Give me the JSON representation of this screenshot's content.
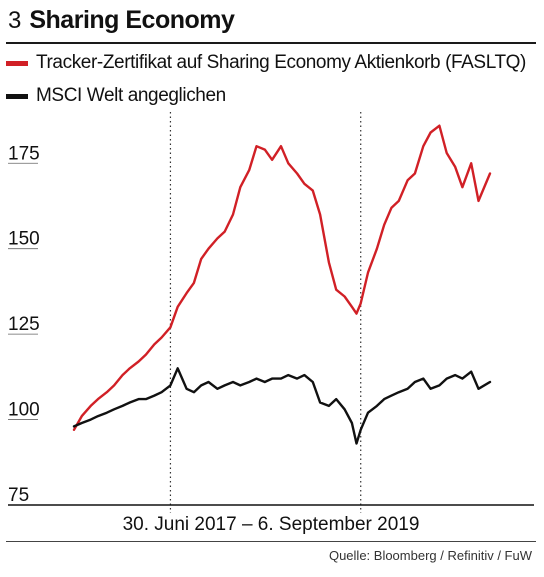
{
  "header": {
    "figure_number": "3",
    "title": "Sharing Economy"
  },
  "source": "Quelle: Bloomberg / Refinitiv / FuW",
  "colors": {
    "tracker": "#d12026",
    "msci": "#111111",
    "grid": "#333333"
  },
  "chart_data": {
    "type": "line",
    "title": "Sharing Economy",
    "xlabel": "30. Juni 2017 – 6. September 2019",
    "ylabel": "",
    "ylim": [
      75,
      190
    ],
    "yticks": [
      75,
      100,
      125,
      150,
      175
    ],
    "grid": "vertical dotted",
    "legend_position": "top",
    "x_start": "2017-06-30",
    "x_end": "2019-09-06",
    "x_gridlines": [
      "2018-01-01",
      "2019-01-01"
    ],
    "series": [
      {
        "name": "Tracker-Zertifikat auf Sharing Economy Aktienkorb (FASLTQ)",
        "color": "#d12026",
        "x": [
          "2017-06-30",
          "2017-07-15",
          "2017-08-01",
          "2017-08-15",
          "2017-09-01",
          "2017-09-15",
          "2017-10-01",
          "2017-10-15",
          "2017-11-01",
          "2017-11-15",
          "2017-12-01",
          "2017-12-15",
          "2018-01-01",
          "2018-01-15",
          "2018-02-01",
          "2018-02-15",
          "2018-03-01",
          "2018-03-15",
          "2018-04-01",
          "2018-04-15",
          "2018-05-01",
          "2018-05-15",
          "2018-06-01",
          "2018-06-15",
          "2018-07-01",
          "2018-07-15",
          "2018-08-01",
          "2018-08-15",
          "2018-09-01",
          "2018-09-15",
          "2018-10-01",
          "2018-10-15",
          "2018-11-01",
          "2018-11-15",
          "2018-12-01",
          "2018-12-15",
          "2018-12-24",
          "2019-01-01",
          "2019-01-15",
          "2019-02-01",
          "2019-02-15",
          "2019-03-01",
          "2019-03-15",
          "2019-04-01",
          "2019-04-15",
          "2019-05-01",
          "2019-05-15",
          "2019-06-01",
          "2019-06-15",
          "2019-07-01",
          "2019-07-15",
          "2019-08-01",
          "2019-08-15",
          "2019-09-06"
        ],
        "y": [
          97,
          101,
          104,
          106,
          108,
          110,
          113,
          115,
          117,
          119,
          122,
          124,
          127,
          133,
          137,
          140,
          147,
          150,
          153,
          155,
          160,
          168,
          173,
          180,
          179,
          176,
          180,
          175,
          172,
          169,
          167,
          160,
          146,
          138,
          136,
          133,
          131,
          134,
          143,
          150,
          157,
          162,
          164,
          170,
          172,
          180,
          184,
          186,
          178,
          174,
          168,
          175,
          164,
          172
        ]
      },
      {
        "name": "MSCI Welt angeglichen",
        "color": "#111111",
        "x": [
          "2017-06-30",
          "2017-07-15",
          "2017-08-01",
          "2017-08-15",
          "2017-09-01",
          "2017-09-15",
          "2017-10-01",
          "2017-10-15",
          "2017-11-01",
          "2017-11-15",
          "2017-12-01",
          "2017-12-15",
          "2018-01-01",
          "2018-01-15",
          "2018-02-01",
          "2018-02-15",
          "2018-03-01",
          "2018-03-15",
          "2018-04-01",
          "2018-04-15",
          "2018-05-01",
          "2018-05-15",
          "2018-06-01",
          "2018-06-15",
          "2018-07-01",
          "2018-07-15",
          "2018-08-01",
          "2018-08-15",
          "2018-09-01",
          "2018-09-15",
          "2018-10-01",
          "2018-10-15",
          "2018-11-01",
          "2018-11-15",
          "2018-12-01",
          "2018-12-15",
          "2018-12-24",
          "2019-01-01",
          "2019-01-15",
          "2019-02-01",
          "2019-02-15",
          "2019-03-01",
          "2019-03-15",
          "2019-04-01",
          "2019-04-15",
          "2019-05-01",
          "2019-05-15",
          "2019-06-01",
          "2019-06-15",
          "2019-07-01",
          "2019-07-15",
          "2019-08-01",
          "2019-08-15",
          "2019-09-06"
        ],
        "y": [
          98,
          99,
          100,
          101,
          102,
          103,
          104,
          105,
          106,
          106,
          107,
          108,
          110,
          115,
          109,
          108,
          110,
          111,
          109,
          110,
          111,
          110,
          111,
          112,
          111,
          112,
          112,
          113,
          112,
          113,
          111,
          105,
          104,
          106,
          103,
          99,
          93,
          97,
          102,
          104,
          106,
          107,
          108,
          109,
          111,
          112,
          109,
          110,
          112,
          113,
          112,
          114,
          109,
          111
        ]
      }
    ]
  }
}
